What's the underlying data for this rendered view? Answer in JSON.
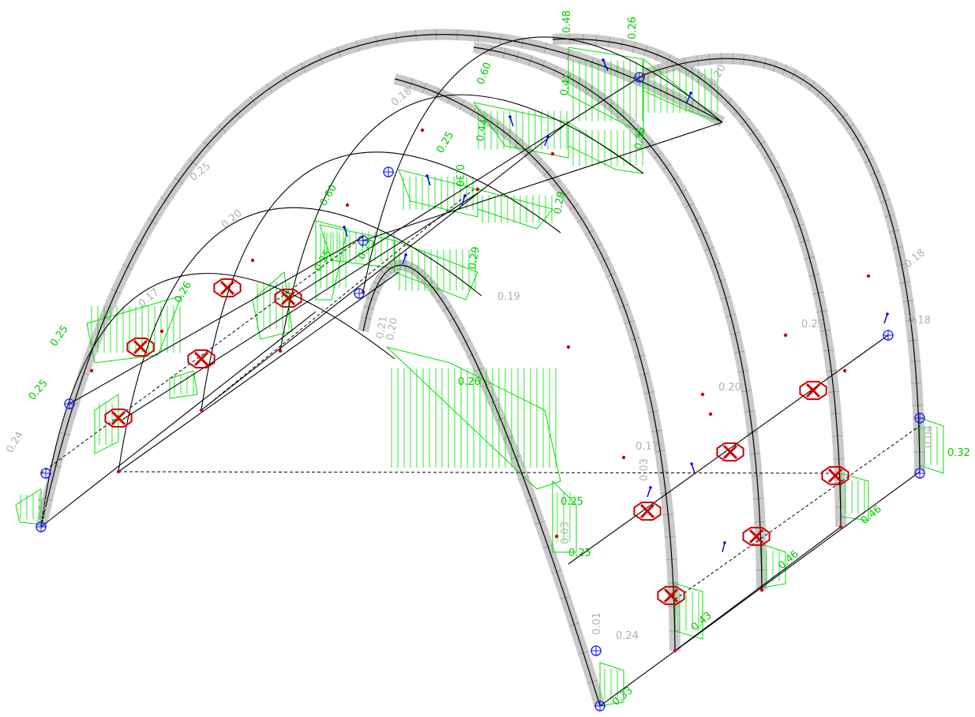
{
  "colors": {
    "beam": "#000000",
    "axial_band": "#c0c0c0",
    "moment_diagram": "#00e000",
    "reaction_marker": "#cc0000",
    "support_symbol": "#1a1aff",
    "local_axis": "#0000ff",
    "green_label": "#00cc00",
    "gray_label": "#b0b0b0"
  },
  "green_labels": [
    "0.48",
    "0.26",
    "0.60",
    "0.41",
    "0.35",
    "0.44",
    "0.30",
    "0.29",
    "0.29",
    "0.60",
    "0.25",
    "0.25",
    "0.26",
    "0.32",
    "0.26",
    "0.25",
    "0.25",
    "0.43",
    "0.46",
    "0.46",
    "0.33",
    "0.35",
    "0.25",
    "0.23"
  ],
  "gray_labels": [
    "0.20",
    "0.18",
    "0.20",
    "0.21",
    "0.20",
    "0.19",
    "0.18",
    "0.25",
    "0.18",
    "0.20",
    "0.17",
    "0.24",
    "0.24",
    "0.17",
    "0.25",
    "0.04",
    "0.04",
    "0.03",
    "0.03",
    "0.01"
  ]
}
